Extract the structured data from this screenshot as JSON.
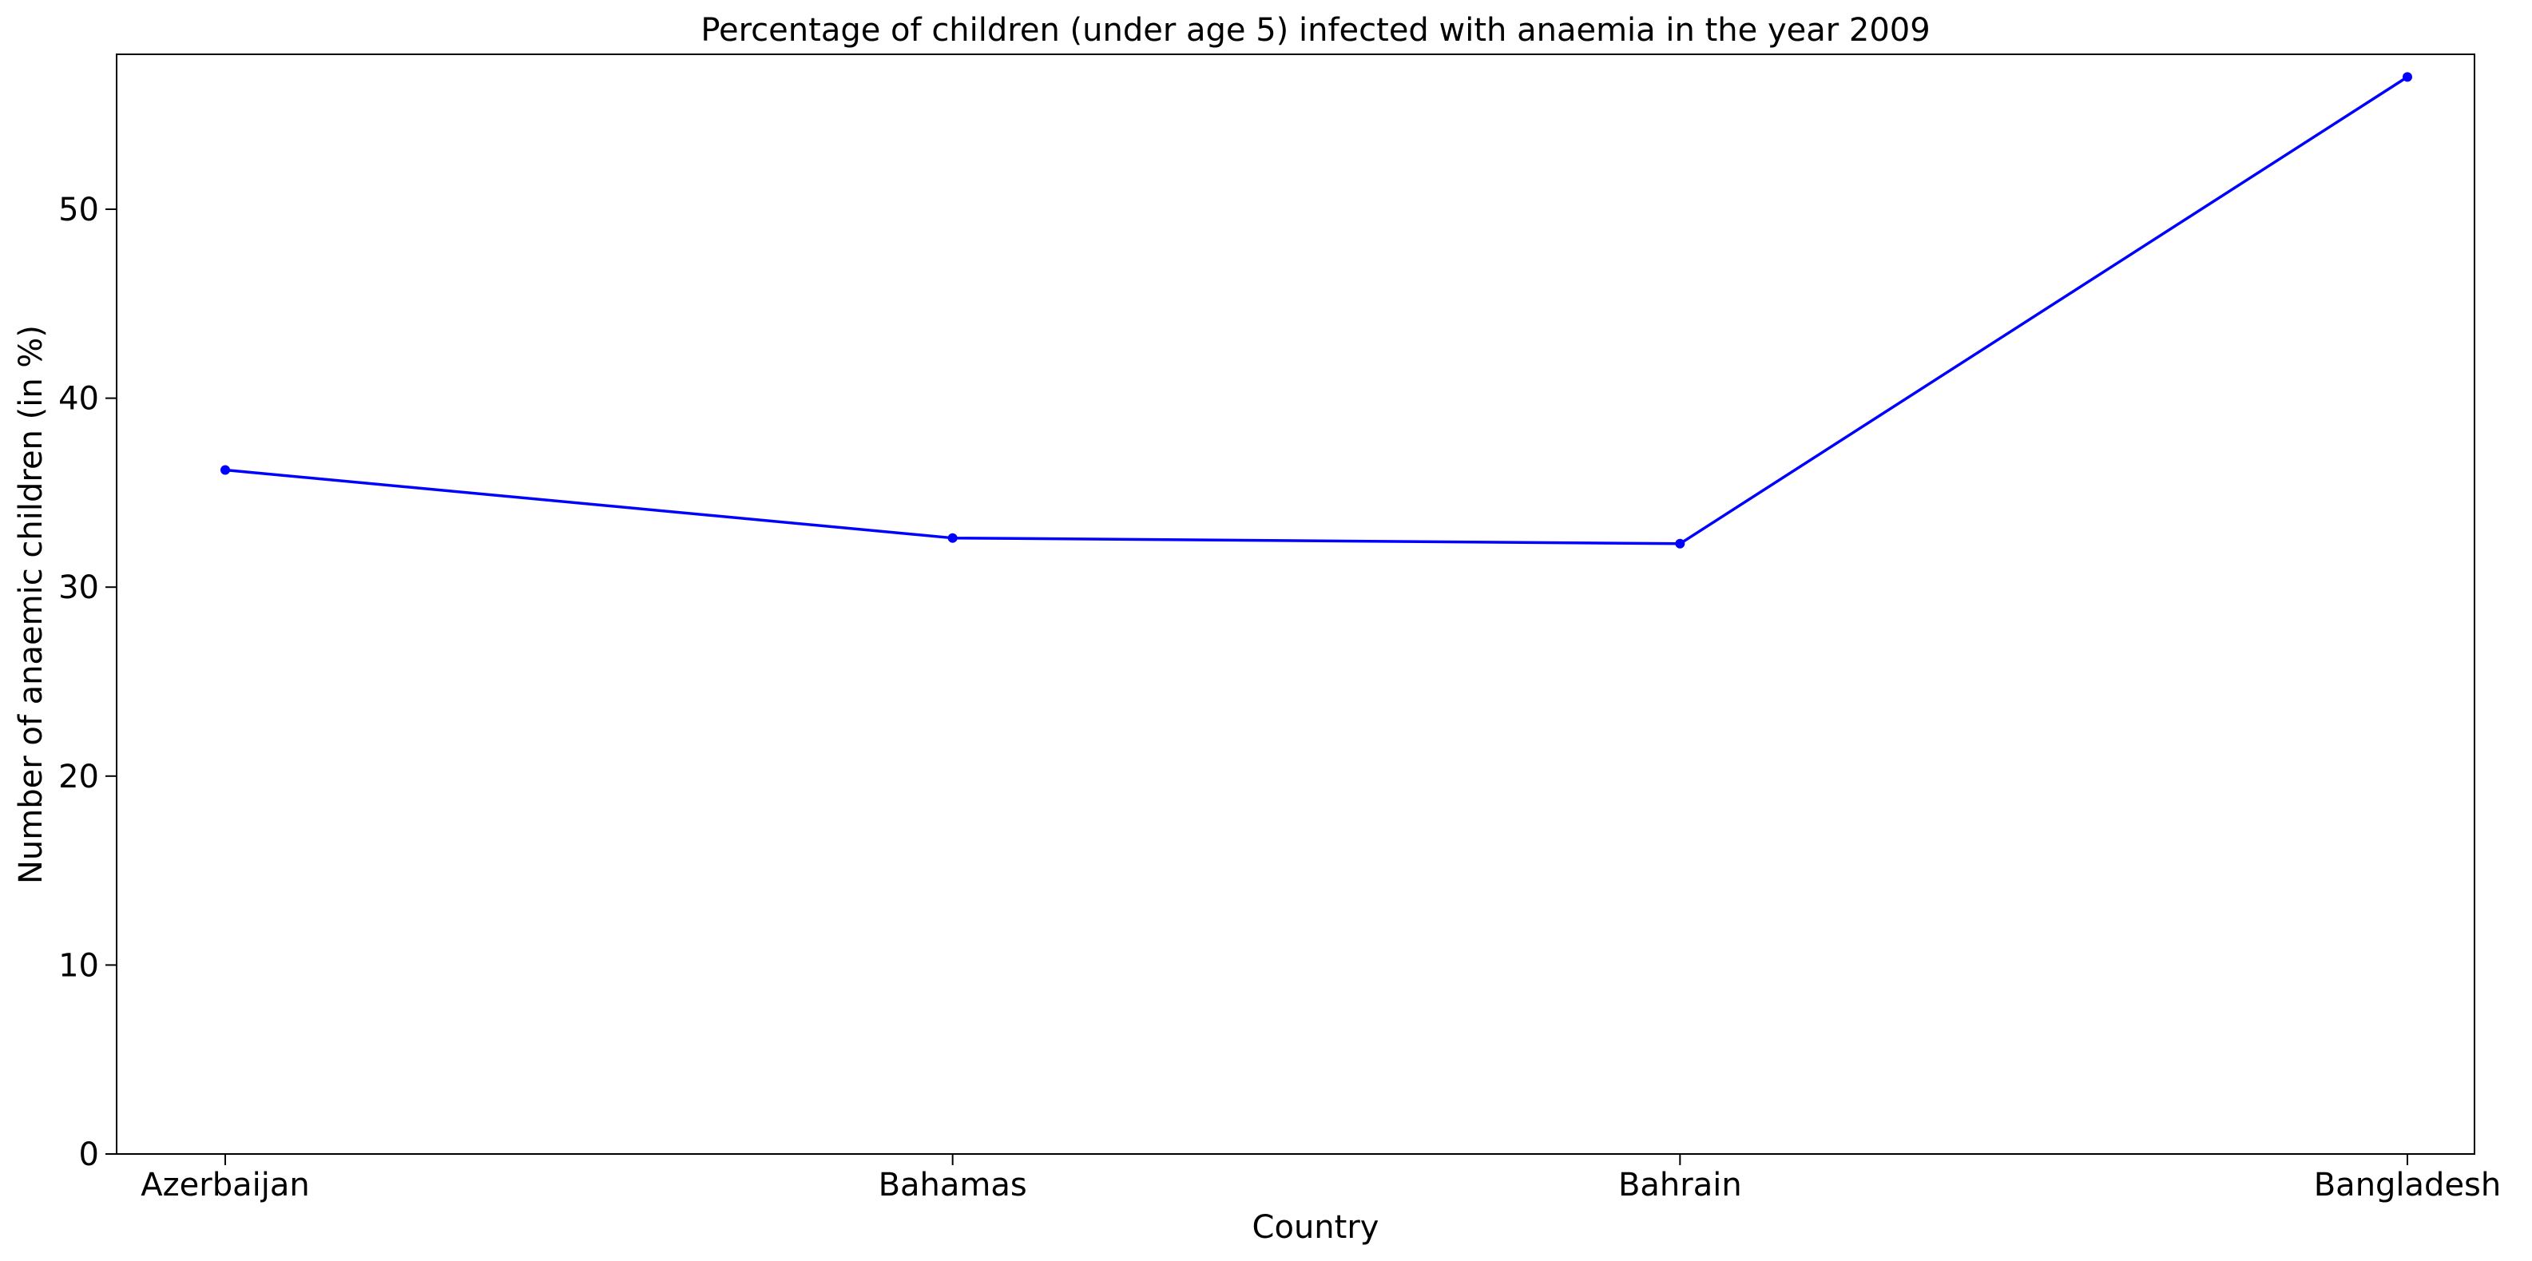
{
  "chart_data": {
    "type": "line",
    "title": "Percentage of children (under age 5) infected with anaemia in the year 2009",
    "xlabel": "Country",
    "ylabel": "Number of anaemic children (in %)",
    "categories": [
      "Azerbaijan",
      "Bahamas",
      "Bahrain",
      "Bangladesh"
    ],
    "series": [
      {
        "values": [
          36.2,
          32.6,
          32.3,
          57.0
        ],
        "color": "#0000ff",
        "marker": "dot"
      }
    ],
    "ylim": [
      0,
      58.2
    ],
    "yticks": [
      0,
      10,
      20,
      30,
      40,
      50
    ],
    "grid": false,
    "legend": "none"
  }
}
